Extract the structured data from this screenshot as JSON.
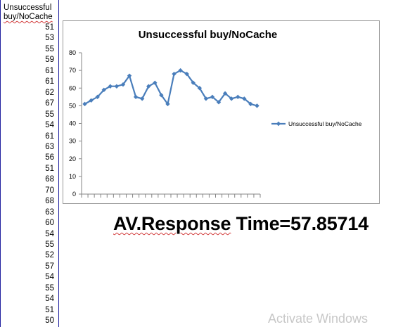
{
  "sheet": {
    "header_line1": "Unsuccessful",
    "header_line2": "buy/NoCache",
    "values": [
      51,
      53,
      55,
      59,
      61,
      61,
      62,
      67,
      55,
      54,
      61,
      63,
      56,
      51,
      68,
      70,
      68,
      63,
      60,
      54,
      55,
      52,
      57,
      54,
      55,
      54,
      51,
      50
    ]
  },
  "label": {
    "underlined": "AV.Response",
    "rest": " Time=57.85714"
  },
  "watermark": "Activate Windows",
  "chart_data": {
    "type": "line",
    "title": "Unsuccessful buy/NoCache",
    "xlabel": "",
    "ylabel": "",
    "ylim": [
      0,
      80
    ],
    "yticks": [
      0,
      10,
      20,
      30,
      40,
      50,
      60,
      70,
      80
    ],
    "grid": false,
    "legend": "right",
    "color": "#4a7ebb",
    "series": [
      {
        "name": "Unsuccessful buy/NoCache",
        "values": [
          51,
          53,
          55,
          59,
          61,
          61,
          62,
          67,
          55,
          54,
          61,
          63,
          56,
          51,
          68,
          70,
          68,
          63,
          60,
          54,
          55,
          52,
          57,
          54,
          55,
          54,
          51,
          50
        ]
      }
    ]
  }
}
